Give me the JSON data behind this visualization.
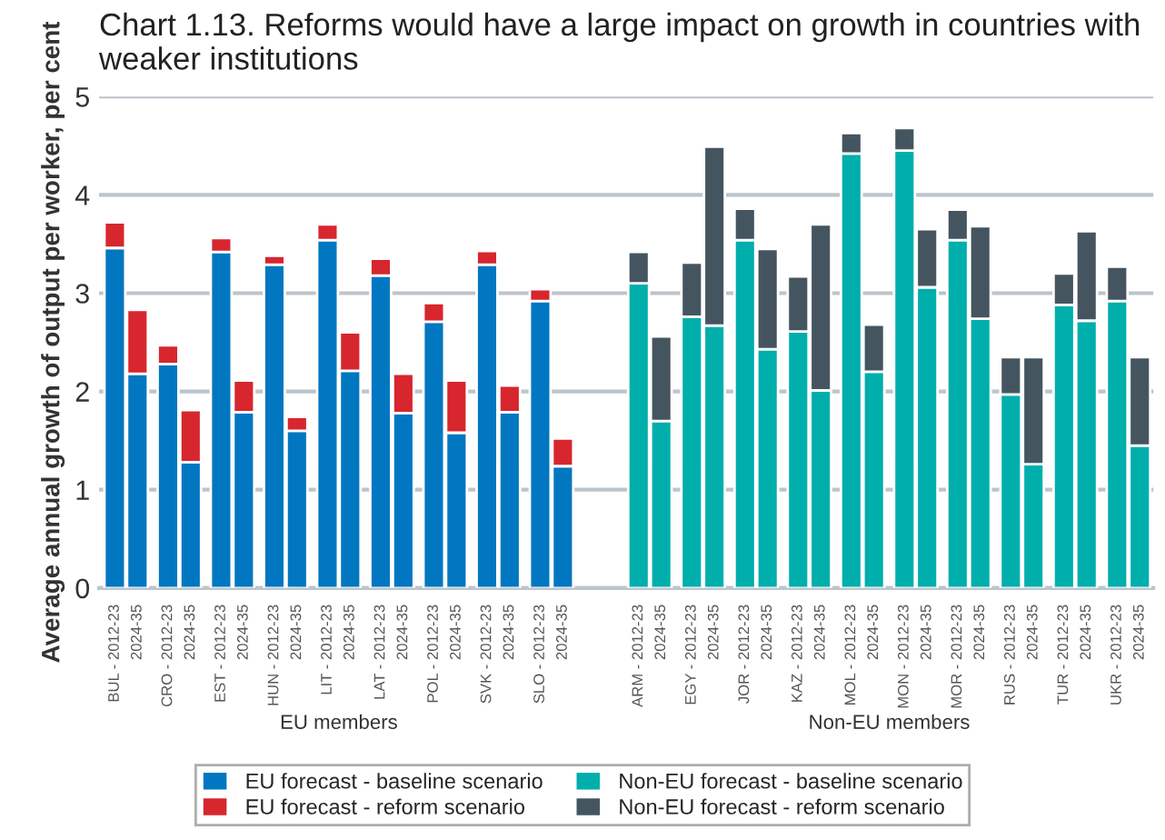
{
  "chart_data": {
    "type": "bar",
    "stacked": true,
    "title": "Chart 1.13. Reforms would have a large impact on growth in countries with weaker institutions",
    "ylabel": "Average annual growth of output per worker, per cent",
    "categories": [
      "BUL - 2012-23",
      "2024-35",
      "CRO - 2012-23",
      "2024-35",
      "EST - 2012-23",
      "2024-35",
      "HUN - 2012-23",
      "2024-35",
      "LIT - 2012-23",
      "2024-35",
      "LAT - 2012-23",
      "2024-35",
      "POL - 2012-23",
      "2024-35",
      "SVK - 2012-23",
      "2024-35",
      "SLO - 2012-23",
      "2024-35",
      null,
      null,
      "ARM - 2012-23",
      "2024-35",
      "EGY - 2012-23",
      "2024-35",
      "JOR - 2012-23",
      "2024-35",
      "KAZ - 2012-23",
      "2024-35",
      "MOL - 2012-23",
      "2024-35",
      "MON - 2012-23",
      "2024-35",
      "MOR - 2012-23",
      "2024-35",
      "RUS - 2012-23",
      "2024-35",
      "TUR - 2012-23",
      "2024-35",
      "UKR - 2012-23",
      "2024-35"
    ],
    "series": [
      {
        "name": "EU forecast - baseline scenario",
        "color": "#0077c0",
        "values": [
          3.46,
          2.18,
          2.28,
          1.28,
          3.42,
          1.79,
          3.29,
          1.6,
          3.54,
          2.21,
          3.18,
          1.78,
          2.71,
          1.58,
          3.29,
          1.79,
          2.92,
          1.24,
          null,
          null,
          null,
          null,
          null,
          null,
          null,
          null,
          null,
          null,
          null,
          null,
          null,
          null,
          null,
          null,
          null,
          null,
          null,
          null,
          null,
          null
        ]
      },
      {
        "name": "EU forecast - reform scenario",
        "color": "#d7262e",
        "values": [
          0.26,
          0.65,
          0.19,
          0.53,
          0.14,
          0.32,
          0.09,
          0.14,
          0.16,
          0.39,
          0.17,
          0.4,
          0.19,
          0.53,
          0.14,
          0.27,
          0.12,
          0.28,
          null,
          null,
          null,
          null,
          null,
          null,
          null,
          null,
          null,
          null,
          null,
          null,
          null,
          null,
          null,
          null,
          null,
          null,
          null,
          null,
          null,
          null
        ]
      },
      {
        "name": "Non-EU forecast - baseline scenario",
        "color": "#00aeac",
        "values": [
          null,
          null,
          null,
          null,
          null,
          null,
          null,
          null,
          null,
          null,
          null,
          null,
          null,
          null,
          null,
          null,
          null,
          null,
          null,
          null,
          3.1,
          1.7,
          2.76,
          2.67,
          3.54,
          2.43,
          2.61,
          2.01,
          4.42,
          2.2,
          4.45,
          3.06,
          3.54,
          2.74,
          1.97,
          1.26,
          2.88,
          2.72,
          2.92,
          1.45
        ]
      },
      {
        "name": "Non-EU forecast - reform scenario",
        "color": "#455560",
        "values": [
          null,
          null,
          null,
          null,
          null,
          null,
          null,
          null,
          null,
          null,
          null,
          null,
          null,
          null,
          null,
          null,
          null,
          null,
          null,
          null,
          0.32,
          0.86,
          0.55,
          1.82,
          0.32,
          1.02,
          0.56,
          1.69,
          0.21,
          0.48,
          0.23,
          0.59,
          0.31,
          0.94,
          0.38,
          1.09,
          0.32,
          0.91,
          0.35,
          0.9
        ]
      }
    ],
    "ylim": [
      0,
      5
    ],
    "yticks": [
      0,
      1,
      2,
      3,
      4,
      5
    ],
    "grid": "y",
    "legend": "bottom",
    "annotations": [
      "EU members",
      "Non-EU members"
    ]
  }
}
